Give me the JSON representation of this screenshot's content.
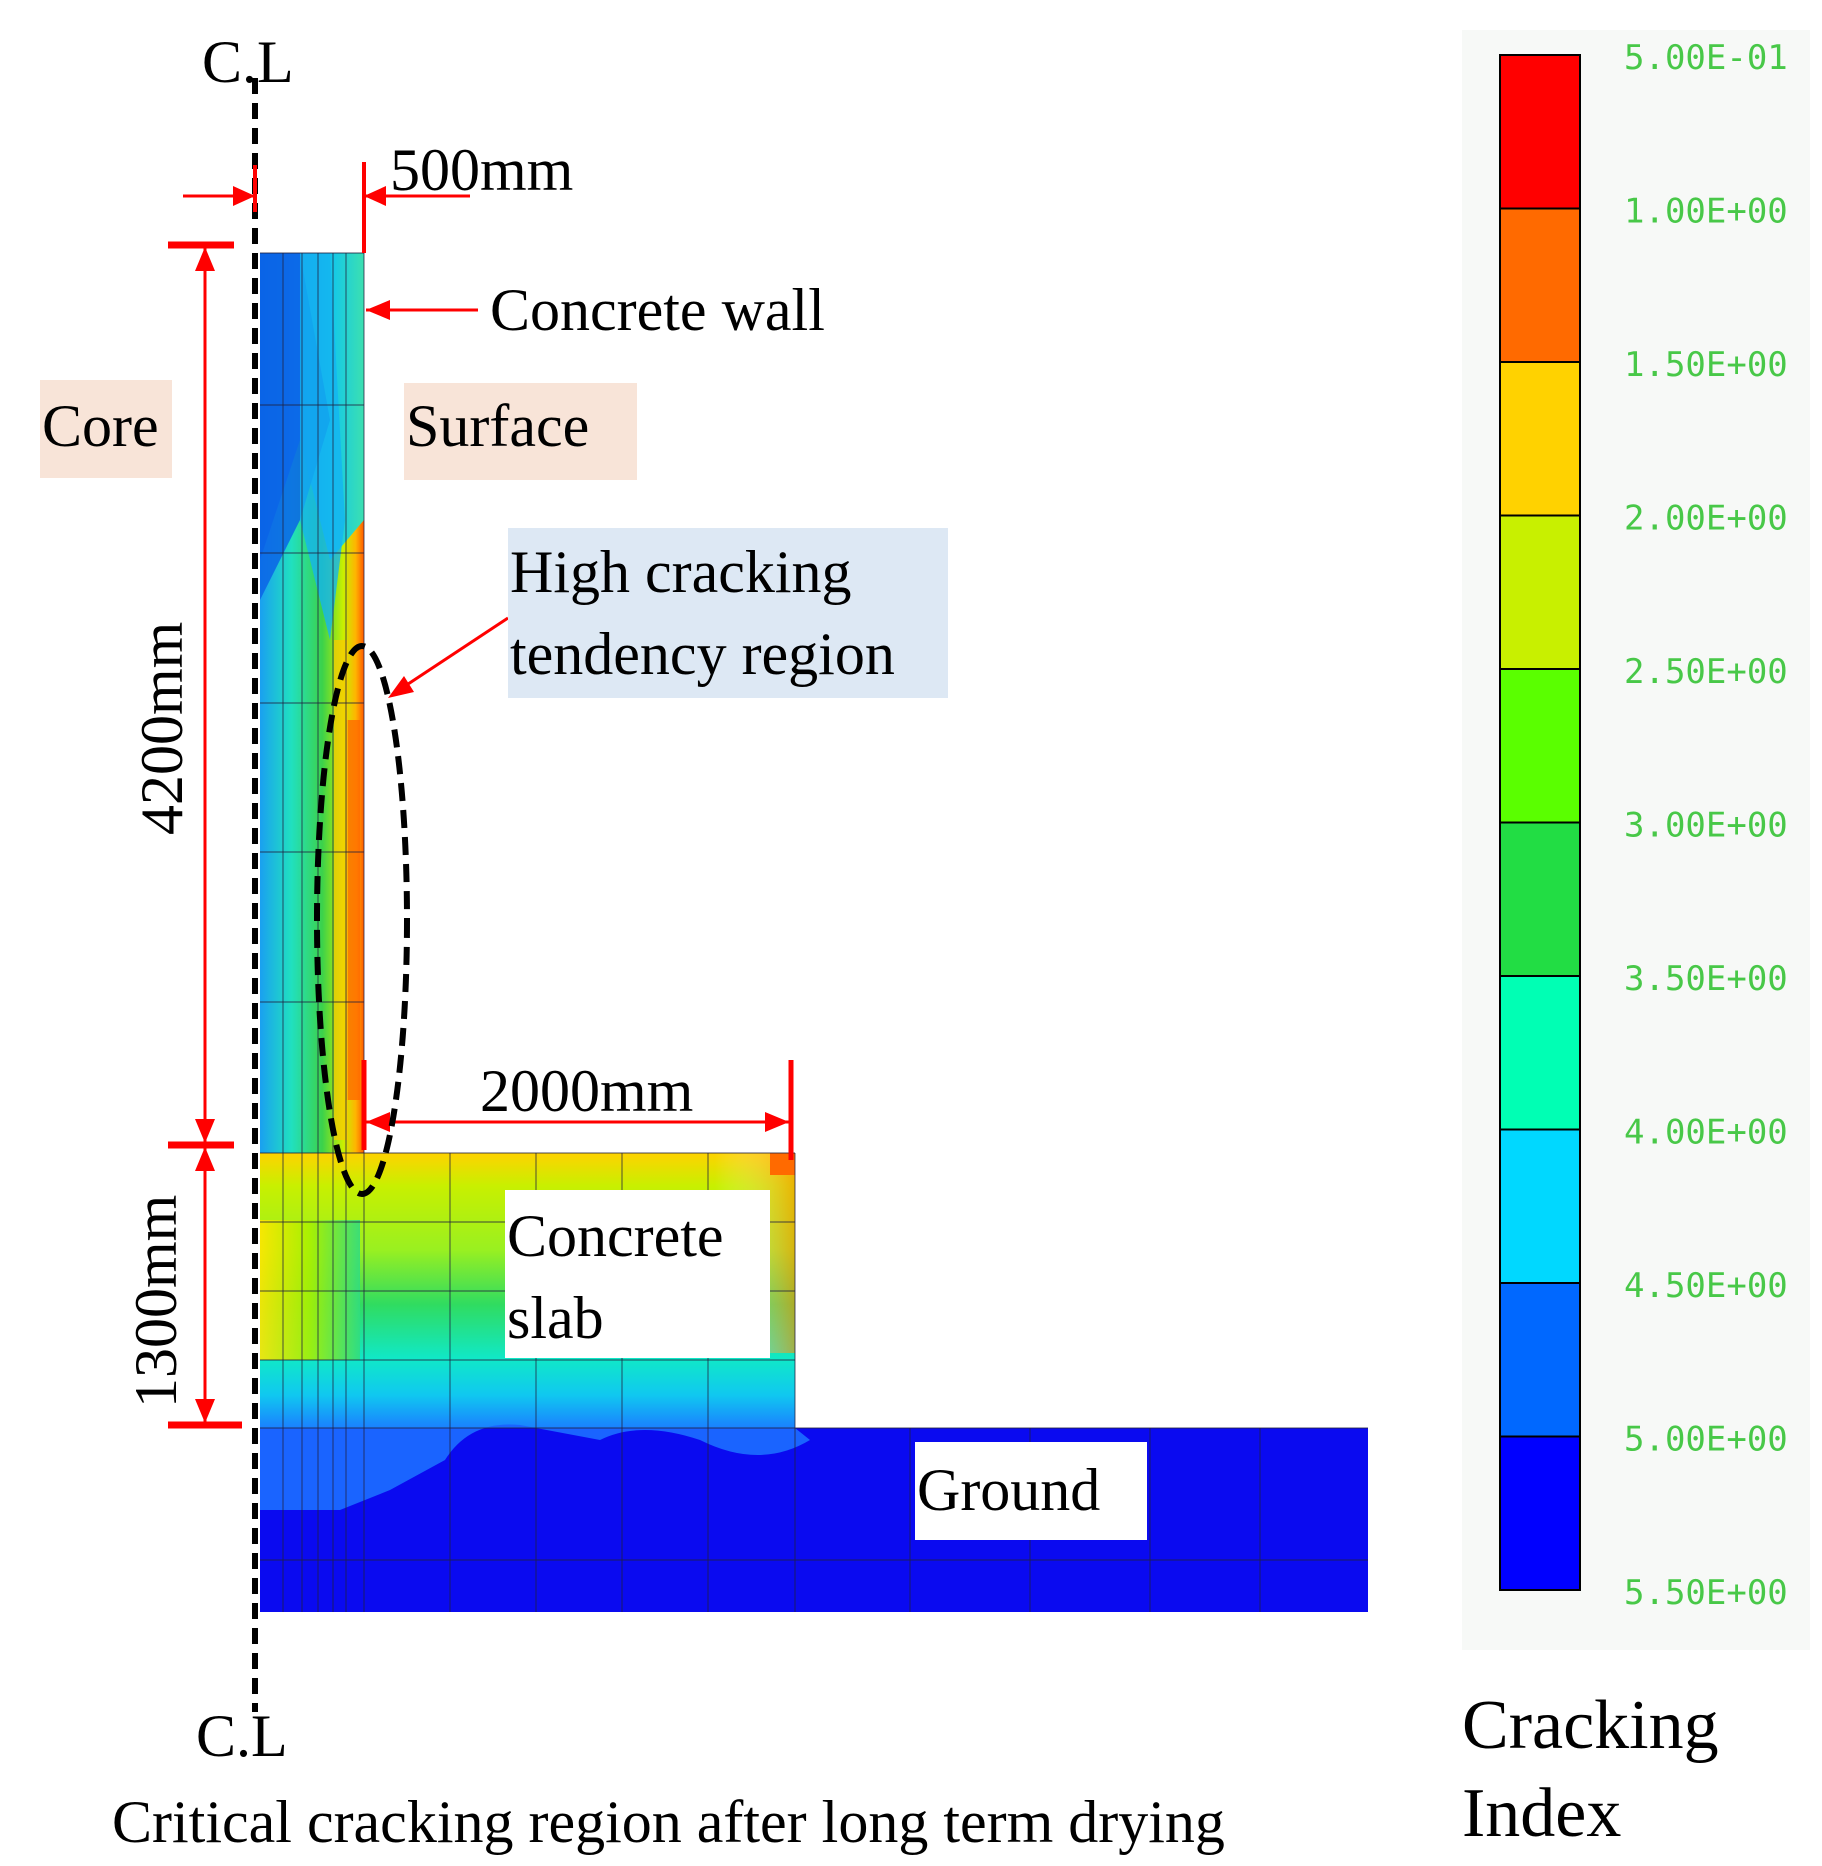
{
  "figure": {
    "caption": "Critical cracking region after long term drying",
    "centerline_top": "C.L",
    "centerline_bottom": "C.L"
  },
  "dimensions": {
    "wall_thickness": "500mm",
    "wall_height": "4200mm",
    "slab_thickness": "1300mm",
    "slab_length": "2000mm"
  },
  "labels": {
    "concrete_wall": "Concrete wall",
    "core": "Core",
    "surface": "Surface",
    "high_cracking_line1": "High cracking",
    "high_cracking_line2": "tendency region",
    "concrete_slab_line1": "Concrete",
    "slab_line2": "slab",
    "ground": "Ground"
  },
  "legend": {
    "title_line1": "Cracking",
    "title_line2": "Index",
    "ticks": [
      "5.00E-01",
      "1.00E+00",
      "1.50E+00",
      "2.00E+00",
      "2.50E+00",
      "3.00E+00",
      "3.50E+00",
      "4.00E+00",
      "4.50E+00",
      "5.00E+00",
      "5.50E+00"
    ],
    "colors": [
      "#ff0000",
      "#ff6a00",
      "#ffd200",
      "#c8f000",
      "#5aff00",
      "#22dd44",
      "#00ffb4",
      "#00d8ff",
      "#0068ff",
      "#0000ff"
    ]
  },
  "colors": {
    "dimension_red": "#ff0000",
    "ground_blue": "#0a0af0"
  }
}
